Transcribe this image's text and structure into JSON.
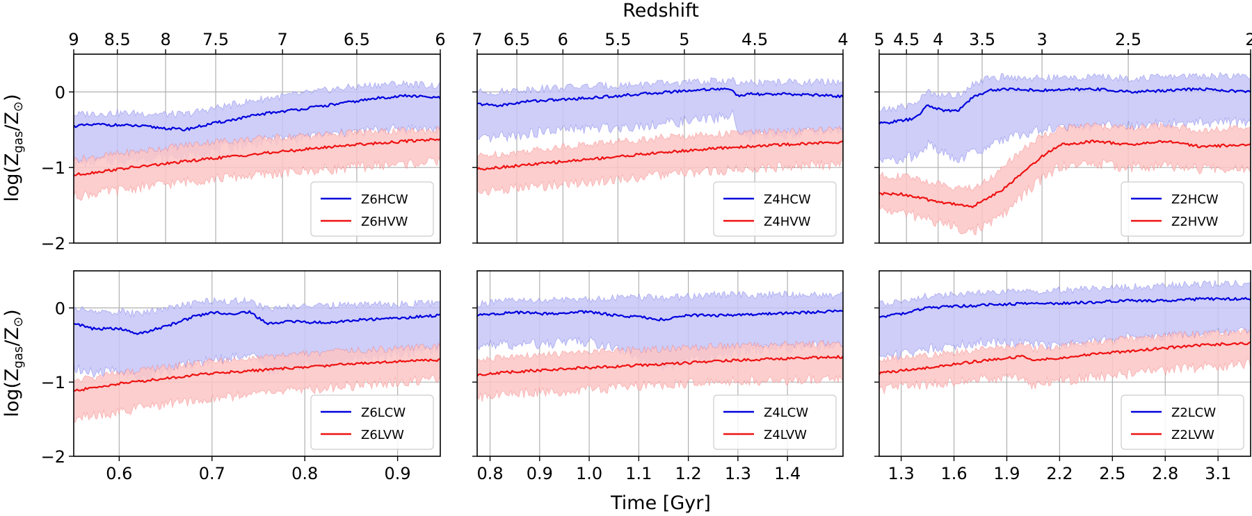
{
  "figure": {
    "top_xlabel": "Redshift",
    "bottom_xlabel": "Time [Gyr]",
    "ylabel_main": "log(Z",
    "ylabel_sub_gas": "gas",
    "ylabel_sep": "/Z",
    "ylabel_sub_sun": "⊙",
    "ylabel_close": ")",
    "colors": {
      "cw": "#0000dd",
      "vw": "#ee1111",
      "cw_band": "#c6c6f7",
      "vw_band": "#fbc5c5",
      "grid": "#b0b0b0"
    }
  },
  "chart_data": [
    {
      "type": "line",
      "id": "Z6H",
      "row": 0,
      "col": 0,
      "xlim": [
        0.551,
        0.946
      ],
      "ylim": [
        -2,
        0.5
      ],
      "yticks": [
        -2,
        -1,
        0
      ],
      "ytick_labels": [
        "−2",
        "−1",
        "0"
      ],
      "redshift_ticks": [
        {
          "label": "9",
          "t": 0.551
        },
        {
          "label": "8.5",
          "t": 0.598
        },
        {
          "label": "8",
          "t": 0.65
        },
        {
          "label": "7.5",
          "t": 0.704
        },
        {
          "label": "7",
          "t": 0.776
        },
        {
          "label": "6.5",
          "t": 0.856
        },
        {
          "label": "6",
          "t": 0.946
        }
      ],
      "series": [
        {
          "name": "Z6HCW",
          "kind": "CW",
          "x": [
            0.551,
            0.58,
            0.62,
            0.67,
            0.7,
            0.73,
            0.76,
            0.8,
            0.84,
            0.88,
            0.91,
            0.946
          ],
          "y": [
            -0.45,
            -0.43,
            -0.45,
            -0.5,
            -0.42,
            -0.35,
            -0.28,
            -0.22,
            -0.15,
            -0.08,
            -0.05,
            -0.08
          ],
          "lower": [
            -0.95,
            -0.92,
            -0.88,
            -0.85,
            -0.78,
            -0.7,
            -0.65,
            -0.6,
            -0.55,
            -0.5,
            -0.48,
            -0.5
          ],
          "upper": [
            -0.3,
            -0.28,
            -0.28,
            -0.3,
            -0.22,
            -0.15,
            -0.08,
            -0.02,
            0.05,
            0.1,
            0.11,
            0.08
          ]
        },
        {
          "name": "Z6HVW",
          "kind": "VW",
          "x": [
            0.551,
            0.6,
            0.65,
            0.7,
            0.75,
            0.8,
            0.85,
            0.9,
            0.946
          ],
          "y": [
            -1.1,
            -1.02,
            -0.95,
            -0.88,
            -0.82,
            -0.76,
            -0.7,
            -0.66,
            -0.62
          ],
          "lower": [
            -1.38,
            -1.3,
            -1.22,
            -1.15,
            -1.1,
            -1.05,
            -1.0,
            -0.96,
            -0.92
          ],
          "upper": [
            -0.9,
            -0.82,
            -0.74,
            -0.66,
            -0.62,
            -0.58,
            -0.54,
            -0.52,
            -0.5
          ]
        }
      ]
    },
    {
      "type": "line",
      "id": "Z4H",
      "row": 0,
      "col": 1,
      "xlim": [
        0.774,
        1.512
      ],
      "ylim": [
        -2,
        0.5
      ],
      "yticks": [
        -2,
        -1,
        0
      ],
      "ytick_labels": [
        "",
        "",
        ""
      ],
      "redshift_ticks": [
        {
          "label": "7",
          "t": 0.774
        },
        {
          "label": "6.5",
          "t": 0.854
        },
        {
          "label": "6",
          "t": 0.947
        },
        {
          "label": "5.5",
          "t": 1.058
        },
        {
          "label": "5",
          "t": 1.192
        },
        {
          "label": "4.5",
          "t": 1.334
        },
        {
          "label": "4",
          "t": 1.512
        }
      ],
      "series": [
        {
          "name": "Z4HCW",
          "kind": "CW",
          "x": [
            0.774,
            0.82,
            0.88,
            0.95,
            1.02,
            1.1,
            1.18,
            1.25,
            1.29,
            1.3,
            1.32,
            1.4,
            1.46,
            1.512
          ],
          "y": [
            -0.16,
            -0.18,
            -0.12,
            -0.1,
            -0.07,
            -0.03,
            0.01,
            0.04,
            0.03,
            -0.06,
            -0.03,
            -0.03,
            -0.04,
            -0.06
          ],
          "lower": [
            -0.65,
            -0.6,
            -0.55,
            -0.5,
            -0.48,
            -0.45,
            -0.4,
            -0.35,
            -0.3,
            -0.55,
            -0.6,
            -0.55,
            -0.52,
            -0.5
          ],
          "upper": [
            0.0,
            0.0,
            0.04,
            0.06,
            0.08,
            0.1,
            0.12,
            0.14,
            0.16,
            0.08,
            0.12,
            0.13,
            0.13,
            0.13
          ]
        },
        {
          "name": "Z4HVW",
          "kind": "VW",
          "x": [
            0.774,
            0.85,
            0.95,
            1.05,
            1.15,
            1.25,
            1.35,
            1.45,
            1.512
          ],
          "y": [
            -1.02,
            -0.98,
            -0.92,
            -0.86,
            -0.8,
            -0.75,
            -0.71,
            -0.68,
            -0.66
          ],
          "lower": [
            -1.32,
            -1.28,
            -1.22,
            -1.16,
            -1.1,
            -1.05,
            -1.0,
            -0.97,
            -0.96
          ],
          "upper": [
            -0.85,
            -0.8,
            -0.72,
            -0.66,
            -0.6,
            -0.56,
            -0.53,
            -0.51,
            -0.5
          ]
        }
      ]
    },
    {
      "type": "line",
      "id": "Z2H",
      "row": 0,
      "col": 2,
      "xlim": [
        1.175,
        3.285
      ],
      "ylim": [
        -2,
        0.5
      ],
      "yticks": [
        -2,
        -1,
        0
      ],
      "ytick_labels": [
        "",
        "",
        ""
      ],
      "redshift_ticks": [
        {
          "label": "5",
          "t": 1.175
        },
        {
          "label": "4.5",
          "t": 1.33
        },
        {
          "label": "4",
          "t": 1.51
        },
        {
          "label": "3.5",
          "t": 1.76
        },
        {
          "label": "3",
          "t": 2.1
        },
        {
          "label": "2.5",
          "t": 2.59
        },
        {
          "label": "2",
          "t": 3.285
        }
      ],
      "series": [
        {
          "name": "Z2HCW",
          "kind": "CW",
          "x": [
            1.175,
            1.3,
            1.38,
            1.45,
            1.55,
            1.62,
            1.7,
            1.8,
            1.9,
            2.1,
            2.4,
            2.6,
            2.8,
            3.0,
            3.285
          ],
          "y": [
            -0.42,
            -0.38,
            -0.35,
            -0.18,
            -0.25,
            -0.25,
            -0.08,
            0.02,
            0.04,
            0.02,
            0.04,
            0.0,
            0.02,
            0.04,
            0.0
          ],
          "lower": [
            -0.92,
            -0.88,
            -0.85,
            -0.7,
            -0.82,
            -0.92,
            -0.8,
            -0.72,
            -0.6,
            -0.5,
            -0.45,
            -0.45,
            -0.42,
            -0.4,
            -0.4
          ],
          "upper": [
            -0.25,
            -0.2,
            -0.15,
            0.0,
            -0.05,
            -0.05,
            0.1,
            0.18,
            0.2,
            0.18,
            0.2,
            0.18,
            0.2,
            0.22,
            0.2
          ]
        },
        {
          "name": "Z2HVW",
          "kind": "VW",
          "x": [
            1.175,
            1.3,
            1.4,
            1.5,
            1.6,
            1.7,
            1.8,
            1.9,
            2.0,
            2.1,
            2.2,
            2.4,
            2.6,
            2.8,
            3.0,
            3.285
          ],
          "y": [
            -1.35,
            -1.35,
            -1.4,
            -1.45,
            -1.48,
            -1.52,
            -1.4,
            -1.25,
            -1.05,
            -0.85,
            -0.7,
            -0.65,
            -0.7,
            -0.65,
            -0.72,
            -0.7
          ],
          "lower": [
            -1.55,
            -1.6,
            -1.65,
            -1.72,
            -1.78,
            -1.85,
            -1.75,
            -1.58,
            -1.35,
            -1.15,
            -0.98,
            -0.95,
            -1.0,
            -0.98,
            -1.02,
            -1.0
          ],
          "upper": [
            -1.1,
            -1.12,
            -1.15,
            -1.22,
            -1.25,
            -1.28,
            -1.15,
            -0.95,
            -0.75,
            -0.58,
            -0.48,
            -0.45,
            -0.48,
            -0.45,
            -0.5,
            -0.48
          ]
        }
      ]
    },
    {
      "type": "line",
      "id": "Z6L",
      "row": 1,
      "col": 0,
      "xlim": [
        0.551,
        0.946
      ],
      "ylim": [
        -2,
        0.5
      ],
      "yticks": [
        -2,
        -1,
        0
      ],
      "ytick_labels": [
        "−2",
        "−1",
        "0"
      ],
      "xticks": [
        0.6,
        0.7,
        0.8,
        0.9
      ],
      "xtick_labels": [
        "0.6",
        "0.7",
        "0.8",
        "0.9"
      ],
      "series": [
        {
          "name": "Z6LCW",
          "kind": "CW",
          "x": [
            0.551,
            0.57,
            0.6,
            0.62,
            0.65,
            0.68,
            0.7,
            0.72,
            0.74,
            0.76,
            0.78,
            0.82,
            0.86,
            0.9,
            0.946
          ],
          "y": [
            -0.2,
            -0.28,
            -0.28,
            -0.35,
            -0.25,
            -0.12,
            -0.06,
            -0.08,
            -0.05,
            -0.22,
            -0.18,
            -0.2,
            -0.16,
            -0.14,
            -0.1
          ],
          "lower": [
            -0.8,
            -0.88,
            -0.85,
            -0.92,
            -0.85,
            -0.75,
            -0.7,
            -0.68,
            -0.6,
            -0.85,
            -0.8,
            -0.75,
            -0.68,
            -0.62,
            -0.55
          ],
          "upper": [
            0.0,
            -0.05,
            -0.05,
            -0.08,
            0.0,
            0.05,
            0.1,
            0.09,
            0.1,
            -0.02,
            0.02,
            0.03,
            0.05,
            0.05,
            0.06
          ]
        },
        {
          "name": "Z6LVW",
          "kind": "VW",
          "x": [
            0.551,
            0.6,
            0.65,
            0.7,
            0.75,
            0.8,
            0.85,
            0.9,
            0.946
          ],
          "y": [
            -1.12,
            -1.02,
            -0.95,
            -0.88,
            -0.84,
            -0.8,
            -0.75,
            -0.72,
            -0.7
          ],
          "lower": [
            -1.5,
            -1.4,
            -1.3,
            -1.22,
            -1.15,
            -1.1,
            -1.05,
            -1.0,
            -0.96
          ],
          "upper": [
            -0.98,
            -0.88,
            -0.8,
            -0.72,
            -0.68,
            -0.62,
            -0.58,
            -0.54,
            -0.52
          ]
        }
      ]
    },
    {
      "type": "line",
      "id": "Z4L",
      "row": 1,
      "col": 1,
      "xlim": [
        0.774,
        1.512
      ],
      "ylim": [
        -2,
        0.5
      ],
      "yticks": [
        -2,
        -1,
        0
      ],
      "ytick_labels": [
        "",
        "",
        ""
      ],
      "xticks": [
        0.8,
        0.9,
        1.0,
        1.1,
        1.2,
        1.3,
        1.4
      ],
      "xtick_labels": [
        "0.8",
        "0.9",
        "1.0",
        "1.1",
        "1.2",
        "1.3",
        "1.4"
      ],
      "series": [
        {
          "name": "Z4LCW",
          "kind": "CW",
          "x": [
            0.774,
            0.85,
            0.92,
            1.0,
            1.05,
            1.1,
            1.15,
            1.2,
            1.25,
            1.3,
            1.35,
            1.45,
            1.512
          ],
          "y": [
            -0.1,
            -0.06,
            -0.08,
            -0.05,
            -0.1,
            -0.12,
            -0.16,
            -0.1,
            -0.1,
            -0.1,
            -0.08,
            -0.06,
            -0.04
          ],
          "lower": [
            -0.5,
            -0.5,
            -0.48,
            -0.45,
            -0.55,
            -0.68,
            -0.8,
            -0.7,
            -0.68,
            -0.6,
            -0.55,
            -0.52,
            -0.48
          ],
          "upper": [
            0.05,
            0.1,
            0.1,
            0.12,
            0.14,
            0.14,
            0.14,
            0.15,
            0.18,
            0.18,
            0.18,
            0.18,
            0.17
          ]
        },
        {
          "name": "Z4LVW",
          "kind": "VW",
          "x": [
            0.774,
            0.85,
            0.95,
            1.05,
            1.15,
            1.25,
            1.35,
            1.45,
            1.512
          ],
          "y": [
            -0.9,
            -0.86,
            -0.82,
            -0.79,
            -0.76,
            -0.72,
            -0.69,
            -0.67,
            -0.66
          ],
          "lower": [
            -1.2,
            -1.16,
            -1.12,
            -1.08,
            -1.04,
            -1.0,
            -0.98,
            -0.96,
            -0.95
          ],
          "upper": [
            -0.7,
            -0.66,
            -0.62,
            -0.58,
            -0.55,
            -0.52,
            -0.5,
            -0.49,
            -0.48
          ]
        }
      ]
    },
    {
      "type": "line",
      "id": "Z2L",
      "row": 1,
      "col": 2,
      "xlim": [
        1.175,
        3.285
      ],
      "ylim": [
        -2,
        0.5
      ],
      "yticks": [
        -2,
        -1,
        0
      ],
      "ytick_labels": [
        "",
        "",
        ""
      ],
      "xticks": [
        1.3,
        1.6,
        1.9,
        2.2,
        2.5,
        2.8,
        3.1
      ],
      "xtick_labels": [
        "1.3",
        "1.6",
        "1.9",
        "2.2",
        "2.5",
        "2.8",
        "3.1"
      ],
      "series": [
        {
          "name": "Z2LCW",
          "kind": "CW",
          "x": [
            1.175,
            1.3,
            1.45,
            1.6,
            1.8,
            2.0,
            2.2,
            2.4,
            2.6,
            2.8,
            3.0,
            3.285
          ],
          "y": [
            -0.12,
            -0.08,
            0.0,
            0.02,
            0.04,
            0.06,
            0.06,
            0.08,
            0.1,
            0.1,
            0.12,
            0.12
          ],
          "lower": [
            -0.65,
            -0.62,
            -0.55,
            -0.5,
            -0.45,
            -0.48,
            -0.52,
            -0.45,
            -0.4,
            -0.38,
            -0.35,
            -0.32
          ],
          "upper": [
            0.05,
            0.1,
            0.16,
            0.18,
            0.2,
            0.22,
            0.24,
            0.26,
            0.28,
            0.3,
            0.32,
            0.33
          ]
        },
        {
          "name": "Z2LVW",
          "kind": "VW",
          "x": [
            1.175,
            1.4,
            1.6,
            1.8,
            2.0,
            2.05,
            2.1,
            2.3,
            2.5,
            2.7,
            2.9,
            3.1,
            3.285
          ],
          "y": [
            -0.88,
            -0.82,
            -0.76,
            -0.7,
            -0.65,
            -0.72,
            -0.7,
            -0.65,
            -0.6,
            -0.56,
            -0.52,
            -0.49,
            -0.48
          ],
          "lower": [
            -1.1,
            -1.05,
            -1.0,
            -0.95,
            -0.92,
            -1.05,
            -1.0,
            -0.96,
            -0.92,
            -0.86,
            -0.82,
            -0.78,
            -0.75
          ],
          "upper": [
            -0.7,
            -0.66,
            -0.6,
            -0.55,
            -0.5,
            -0.56,
            -0.54,
            -0.48,
            -0.44,
            -0.4,
            -0.36,
            -0.33,
            -0.32
          ]
        }
      ]
    }
  ]
}
